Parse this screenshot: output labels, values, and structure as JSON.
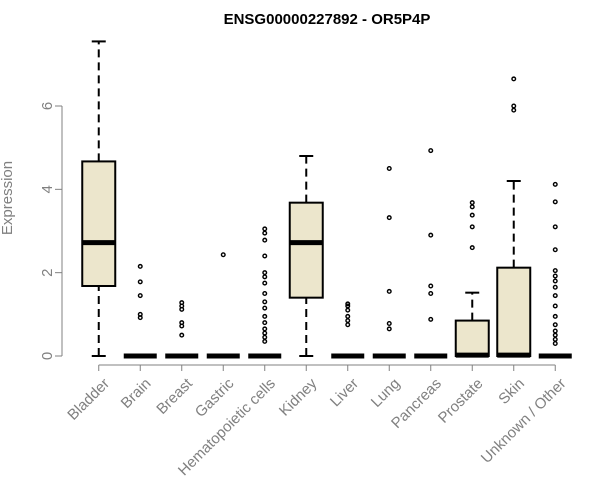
{
  "chart_data": {
    "type": "box",
    "title": "ENSG00000227892 - OR5P4P",
    "xlabel": "",
    "ylabel": "Expression",
    "ylim": [
      0,
      7.6
    ],
    "yticks": [
      0,
      2,
      4,
      6
    ],
    "grid": false,
    "colors": {
      "box_fill": "#ece6cc",
      "stroke": "#000000",
      "axis": "#808080",
      "tick_text": "#808080",
      "title": "#000000"
    },
    "categories": [
      "Bladder",
      "Brain",
      "Breast",
      "Gastric",
      "Hematopoietic cells",
      "Kidney",
      "Liver",
      "Lung",
      "Pancreas",
      "Prostate",
      "Skin",
      "Unknown / Other"
    ],
    "boxes": [
      {
        "category": "Bladder",
        "whisker_low": 0,
        "q1": 1.68,
        "median": 2.72,
        "q3": 4.67,
        "whisker_high": 7.55,
        "outliers": []
      },
      {
        "category": "Brain",
        "whisker_low": 0,
        "q1": 0,
        "median": 0,
        "q3": 0,
        "whisker_high": 0,
        "outliers": [
          0.92,
          1.0,
          1.45,
          1.78,
          2.15
        ]
      },
      {
        "category": "Breast",
        "whisker_low": 0,
        "q1": 0,
        "median": 0,
        "q3": 0,
        "whisker_high": 0,
        "outliers": [
          0.5,
          0.72,
          0.8,
          1.12,
          1.2,
          1.28
        ]
      },
      {
        "category": "Gastric",
        "whisker_low": 0,
        "q1": 0,
        "median": 0,
        "q3": 0,
        "whisker_high": 0,
        "outliers": [
          2.43
        ]
      },
      {
        "category": "Hematopoietic cells",
        "whisker_low": 0,
        "q1": 0,
        "median": 0,
        "q3": 0,
        "whisker_high": 0,
        "outliers": [
          0.35,
          0.45,
          0.55,
          0.65,
          0.8,
          0.95,
          1.15,
          1.3,
          1.5,
          1.75,
          1.9,
          2.0,
          2.4,
          2.78,
          2.95,
          3.05
        ]
      },
      {
        "category": "Kidney",
        "whisker_low": 0,
        "q1": 1.4,
        "median": 2.72,
        "q3": 3.68,
        "whisker_high": 4.8,
        "outliers": []
      },
      {
        "category": "Liver",
        "whisker_low": 0,
        "q1": 0,
        "median": 0,
        "q3": 0,
        "whisker_high": 0,
        "outliers": [
          0.75,
          0.85,
          0.95,
          1.1,
          1.2,
          1.25
        ]
      },
      {
        "category": "Lung",
        "whisker_low": 0,
        "q1": 0,
        "median": 0,
        "q3": 0,
        "whisker_high": 0,
        "outliers": [
          0.65,
          0.78,
          1.55,
          3.32,
          4.5
        ]
      },
      {
        "category": "Pancreas",
        "whisker_low": 0,
        "q1": 0,
        "median": 0,
        "q3": 0,
        "whisker_high": 0,
        "outliers": [
          0.88,
          1.5,
          1.68,
          2.9,
          4.93
        ]
      },
      {
        "category": "Prostate",
        "whisker_low": 0,
        "q1": 0,
        "median": 0.02,
        "q3": 0.85,
        "whisker_high": 1.52,
        "outliers": [
          2.6,
          3.1,
          3.38,
          3.58,
          3.68
        ]
      },
      {
        "category": "Skin",
        "whisker_low": 0,
        "q1": 0,
        "median": 0.02,
        "q3": 2.12,
        "whisker_high": 4.2,
        "outliers": [
          5.9,
          6.0,
          6.65
        ]
      },
      {
        "category": "Unknown / Other",
        "whisker_low": 0,
        "q1": 0,
        "median": 0,
        "q3": 0,
        "whisker_high": 0,
        "outliers": [
          0.3,
          0.4,
          0.5,
          0.6,
          0.75,
          0.95,
          1.2,
          1.45,
          1.65,
          1.8,
          1.92,
          2.05,
          2.55,
          3.1,
          3.7,
          4.12
        ]
      }
    ]
  }
}
